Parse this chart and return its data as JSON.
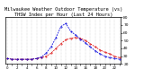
{
  "title": "Milwaukee Weather Outdoor Temperature (vs) THSW Index per Hour (Last 24 Hours)",
  "title_fontsize": 3.8,
  "background_color": "#ffffff",
  "grid_color": "#888888",
  "hours": [
    0,
    1,
    2,
    3,
    4,
    5,
    6,
    7,
    8,
    9,
    10,
    11,
    12,
    13,
    14,
    15,
    16,
    17,
    18,
    19,
    20,
    21,
    22,
    23
  ],
  "temp": [
    27,
    26,
    26,
    26,
    26,
    26,
    27,
    28,
    30,
    34,
    40,
    46,
    51,
    53,
    54,
    53,
    50,
    46,
    42,
    38,
    35,
    33,
    30,
    28
  ],
  "thsw": [
    27,
    26,
    26,
    26,
    26,
    26,
    27,
    29,
    34,
    42,
    54,
    68,
    72,
    62,
    57,
    52,
    47,
    42,
    37,
    33,
    30,
    28,
    27,
    26
  ],
  "temp_color": "#dd0000",
  "thsw_color": "#0000dd",
  "ylim_min": 20,
  "ylim_max": 80,
  "tick_fontsize": 3.2,
  "ytick_values": [
    20,
    30,
    40,
    50,
    60,
    70,
    80
  ]
}
